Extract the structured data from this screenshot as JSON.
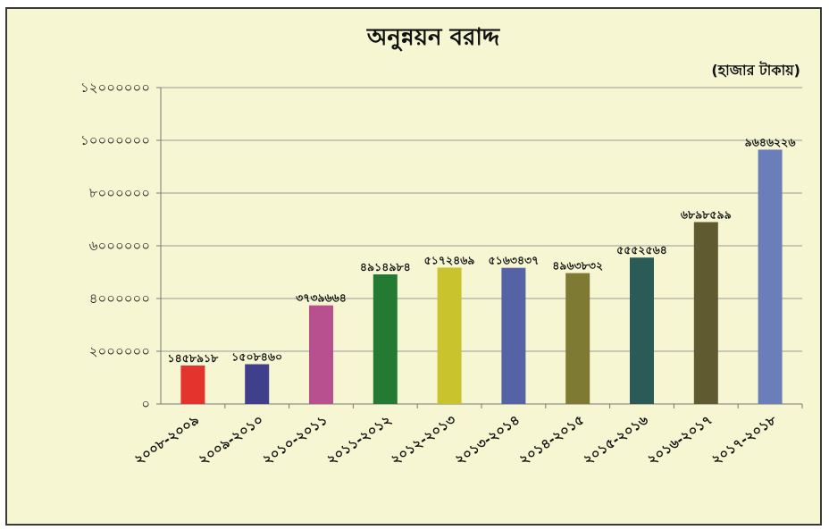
{
  "chart_data": {
    "type": "bar",
    "title": "অনুন্নয়ন বরাদ্দ",
    "unit_note": "(হাজার টাকায়)",
    "xlabel": "",
    "ylabel": "",
    "ylim": [
      0,
      12000000
    ],
    "yticks": [
      0,
      2000000,
      4000000,
      6000000,
      8000000,
      10000000,
      12000000
    ],
    "ytick_labels": [
      "০",
      "২০০০০০০",
      "৪০০০০০০",
      "৬০০০০০০",
      "৮০০০০০০",
      "১০০০০০০০",
      "১২০০০০০০"
    ],
    "grid": true,
    "legend": "none",
    "categories": [
      "২০০৮-২০০৯",
      "২০০৯-২০১০",
      "২০১০-২০১১",
      "২০১১-২০১২",
      "২০১২-২০১৩",
      "২০১৩-২০১৪",
      "২০১৪-২০১৫",
      "২০১৫-২০১৬",
      "২০১৬-২০১৭",
      "২০১৭-২০১৮"
    ],
    "values": [
      1458918,
      1508460,
      3739664,
      4914984,
      5172469,
      5163437,
      4963832,
      5552564,
      6898599,
      9646226
    ],
    "data_labels": [
      "১৪৫৮৯১৮",
      "১৫০৮৪৬০",
      "৩৭৩৯৬৬৪",
      "৪৯১৪৯৮৪",
      "৫১৭২৪৬৯",
      "৫১৬৩৪৩৭",
      "৪৯৬৩৮৩২",
      "৫৫৫২৫৬৪",
      "৬৮৯৮৫৯৯",
      "৯৬৪৬২২৬"
    ],
    "colors": [
      "#e3332c",
      "#3f3f8c",
      "#b8508f",
      "#247a32",
      "#c9c42e",
      "#5562a6",
      "#7f7a33",
      "#2b5b56",
      "#5f5a2f",
      "#6a7eb9"
    ]
  }
}
